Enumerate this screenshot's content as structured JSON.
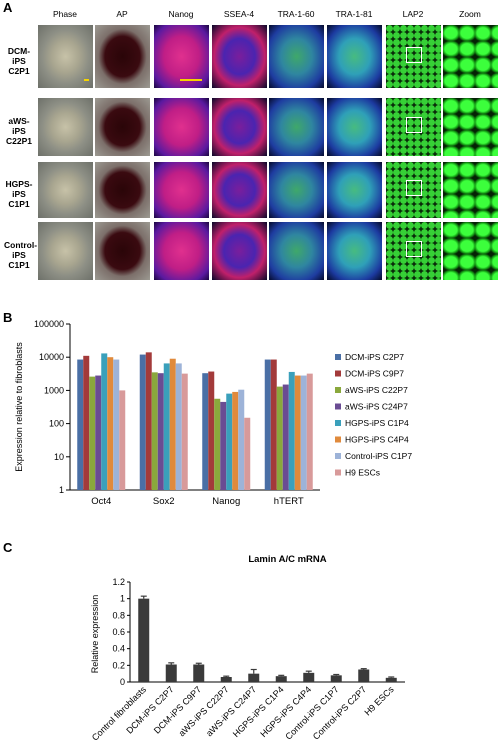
{
  "panel_a": {
    "letter": "A",
    "columns": [
      "Phase",
      "AP",
      "Nanog",
      "SSEA-4",
      "TRA-1-60",
      "TRA-1-81",
      "LAP2",
      "Zoom"
    ],
    "rows": [
      {
        "line1": "DCM-iPS",
        "line2": "C2P1"
      },
      {
        "line1": "aWS-iPS",
        "line2": "C22P1"
      },
      {
        "line1": "HGPS-iPS",
        "line2": "C1P1"
      },
      {
        "line1": "Control-iPS",
        "line2": "C1P1"
      }
    ]
  },
  "panel_b": {
    "letter": "B",
    "chart_data": {
      "type": "bar",
      "ylabel": "Expression relative to fibroblasts",
      "xlabel": "",
      "yscale": "log",
      "ylim": [
        1,
        100000
      ],
      "yticks": [
        "1",
        "10",
        "100",
        "1000",
        "10000",
        "100000"
      ],
      "categories": [
        "Oct4",
        "Sox2",
        "Nanog",
        "hTERT"
      ],
      "legend_position": "right",
      "series": [
        {
          "name": "DCM-iPS C2P7",
          "color": "#4a6fa5",
          "values": [
            8500,
            12000,
            3300,
            8500
          ]
        },
        {
          "name": "DCM-iPS C9P7",
          "color": "#a33a3a",
          "values": [
            11000,
            14000,
            3700,
            8500
          ]
        },
        {
          "name": "aWS-iPS C22P7",
          "color": "#8aa83c",
          "values": [
            2600,
            3500,
            560,
            1300
          ]
        },
        {
          "name": "aWS-iPS C24P7",
          "color": "#6a4c93",
          "values": [
            2800,
            3300,
            450,
            1500
          ]
        },
        {
          "name": "HGPS-iPS C1P4",
          "color": "#3aa0bb",
          "values": [
            13000,
            6500,
            800,
            3600
          ]
        },
        {
          "name": "HGPS-iPS C4P4",
          "color": "#e08a3c",
          "values": [
            10000,
            9000,
            900,
            2800
          ]
        },
        {
          "name": "Control-iPS C1P7",
          "color": "#9db3d8",
          "values": [
            8500,
            6500,
            1050,
            2800
          ]
        },
        {
          "name": "H9 ESCs",
          "color": "#d89a9a",
          "values": [
            1000,
            3200,
            150,
            3200
          ]
        }
      ]
    }
  },
  "panel_c": {
    "letter": "C",
    "chart_data": {
      "type": "bar",
      "title": "Lamin A/C mRNA",
      "ylabel": "Relative expression",
      "xlabel": "",
      "ylim": [
        0,
        1.2
      ],
      "yticks": [
        "0",
        "0.2",
        "0.4",
        "0.6",
        "0.8",
        "1",
        "1.2"
      ],
      "bar_color": "#3a3a3a",
      "categories": [
        "Control fibroblasts",
        "DCM-iPS C2P7",
        "DCM-iPS C9P7",
        "aWS-iPS C22P7",
        "aWS-iPS C24P7",
        "HGPS-iPS C1P4",
        "HGPS-iPS C4P4",
        "Control-iPS C1P7",
        "Control-iPS C2P7",
        "H9 ESCs"
      ],
      "values": [
        1.0,
        0.21,
        0.21,
        0.06,
        0.1,
        0.07,
        0.11,
        0.08,
        0.15,
        0.05
      ],
      "errors": [
        0.03,
        0.02,
        0.015,
        0.01,
        0.05,
        0.01,
        0.02,
        0.01,
        0.01,
        0.01
      ]
    }
  }
}
